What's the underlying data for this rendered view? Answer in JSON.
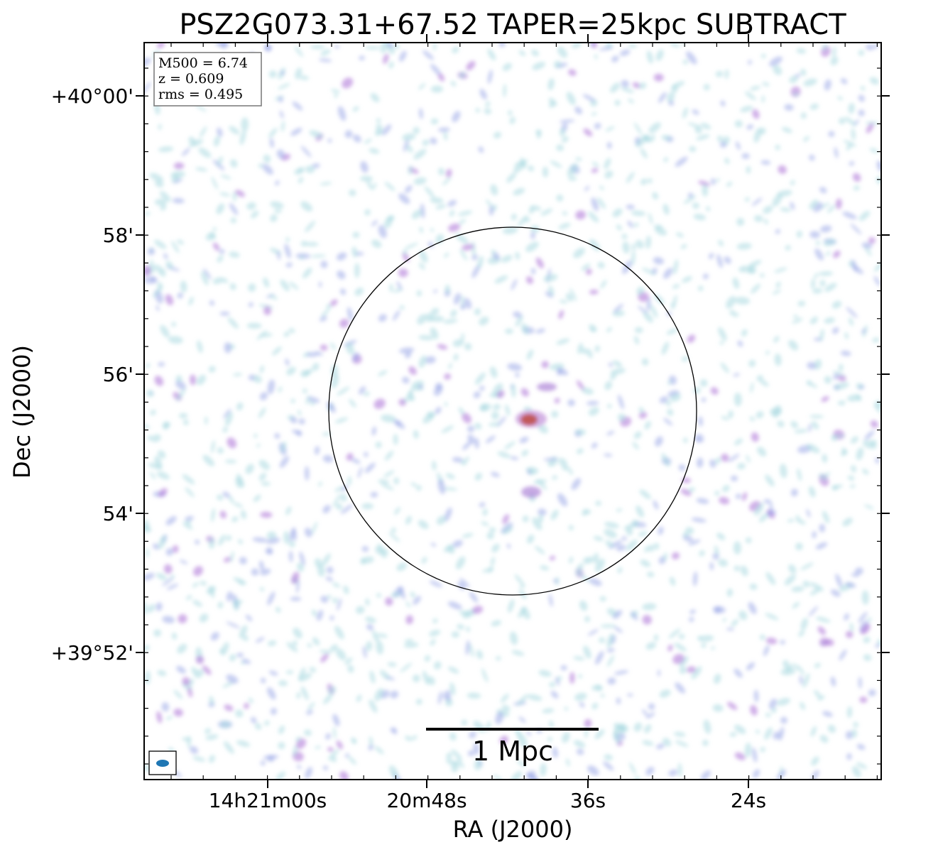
{
  "chart_data": {
    "type": "heatmap",
    "title": "PSZ2G073.31+67.52 TAPER=25kpc SUBTRACT",
    "xlabel": "RA (J2000)",
    "ylabel": "Dec (J2000)",
    "x_ticks": [
      "14h21m00s",
      "20m48s",
      "36s",
      "24s"
    ],
    "y_ticks": [
      "+40°00'",
      "58'",
      "56'",
      "54'",
      "+39°52'"
    ],
    "info_box": [
      "M500 = 6.74",
      "z = 0.609",
      "rms = 0.495"
    ],
    "scalebar_label": "1 Mpc",
    "colors": {
      "low": "#a8d8e0",
      "mid": "#9aa8e8",
      "high": "#b07ad8",
      "peak": "#c0504a",
      "beam": "#1f77b4"
    },
    "grid": false,
    "features": {
      "r500_circle": true,
      "beam_marker": "bottom-left",
      "central_peak": "center"
    }
  }
}
